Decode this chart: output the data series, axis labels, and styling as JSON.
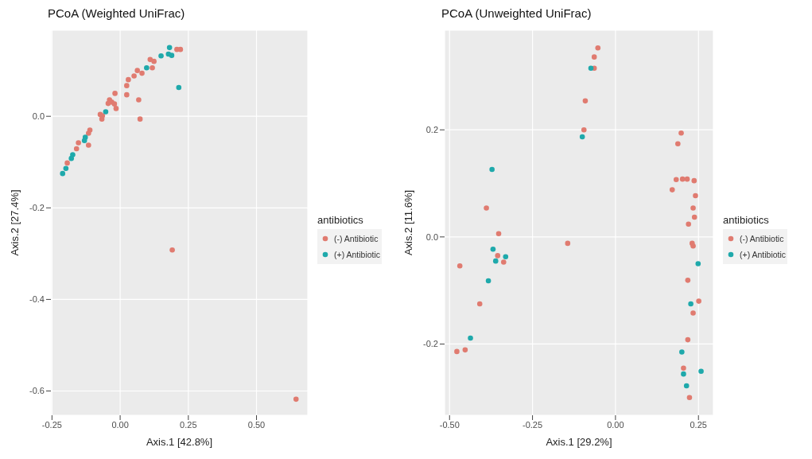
{
  "chart_data": [
    {
      "type": "scatter",
      "title": "PCoA (Weighted UniFrac)",
      "xlabel": "Axis.1   [42.8%]",
      "ylabel": "Axis.2   [27.4%]",
      "legend_title": "antibiotics",
      "legend": "right",
      "grid": true,
      "marker": "circle",
      "xlim": [
        -0.254,
        0.688
      ],
      "ylim": [
        -0.653,
        0.188
      ],
      "xticks": [
        {
          "value": -0.25,
          "label": "-0.25"
        },
        {
          "value": 0,
          "label": "0.00"
        },
        {
          "value": 0.25,
          "label": "0.25"
        },
        {
          "value": 0.5,
          "label": "0.50"
        }
      ],
      "yticks": [
        {
          "value": -0.6,
          "label": "-0.6"
        },
        {
          "value": -0.4,
          "label": "-0.4"
        },
        {
          "value": -0.2,
          "label": "-0.2"
        },
        {
          "value": 0,
          "label": "0.0"
        }
      ],
      "series": [
        {
          "name": "(-) Antibiotic",
          "color": "#e07b70",
          "x": [
            0.208,
            0.221,
            0.11,
            0.124,
            0.118,
            0.063,
            0.08,
            0.051,
            0.03,
            0.024,
            0.024,
            -0.019,
            0.068,
            -0.039,
            -0.031,
            -0.044,
            -0.021,
            -0.015,
            0.073,
            -0.073,
            -0.065,
            -0.067,
            -0.111,
            -0.116,
            -0.116,
            -0.153,
            -0.16,
            -0.194,
            0.191,
            0.645
          ],
          "values": [
            0.146,
            0.146,
            0.124,
            0.12,
            0.106,
            0.1,
            0.094,
            0.088,
            0.08,
            0.067,
            0.047,
            0.05,
            0.036,
            0.036,
            0.031,
            0.028,
            0.027,
            0.017,
            -0.006,
            0.004,
            0.001,
            -0.006,
            -0.03,
            -0.037,
            -0.063,
            -0.058,
            -0.071,
            -0.102,
            -0.292,
            -0.618
          ]
        },
        {
          "name": "(+) Antibiotic",
          "color": "#1fa9ab",
          "x": [
            0.181,
            0.15,
            0.177,
            0.189,
            0.215,
            0.097,
            -0.053,
            -0.128,
            -0.131,
            -0.174,
            -0.179,
            -0.199,
            -0.211
          ],
          "values": [
            0.15,
            0.132,
            0.136,
            0.133,
            0.063,
            0.106,
            0.01,
            -0.046,
            -0.053,
            -0.084,
            -0.092,
            -0.114,
            -0.125
          ]
        }
      ]
    },
    {
      "type": "scatter",
      "title": "PCoA (Unweighted UniFrac)",
      "xlabel": "Axis.1   [29.2%]",
      "ylabel": "Axis.2   [11.6%]",
      "legend_title": "antibiotics",
      "legend": "right",
      "grid": true,
      "marker": "circle",
      "xlim": [
        -0.515,
        0.295
      ],
      "ylim": [
        -0.333,
        0.386
      ],
      "xticks": [
        {
          "value": -0.5,
          "label": "-0.50"
        },
        {
          "value": -0.25,
          "label": "-0.25"
        },
        {
          "value": 0,
          "label": "0.00"
        },
        {
          "value": 0.25,
          "label": "0.25"
        }
      ],
      "yticks": [
        {
          "value": -0.2,
          "label": "-0.2"
        },
        {
          "value": 0,
          "label": "0.0"
        },
        {
          "value": 0.2,
          "label": "0.2"
        }
      ],
      "series": [
        {
          "name": "(-) Antibiotic",
          "color": "#e07b70",
          "x": [
            -0.389,
            -0.352,
            -0.355,
            -0.337,
            -0.469,
            -0.409,
            -0.453,
            -0.478,
            -0.053,
            -0.064,
            -0.064,
            -0.091,
            -0.095,
            0.198,
            0.188,
            0.183,
            0.202,
            0.216,
            0.237,
            0.171,
            0.241,
            null,
            0.234,
            0.238,
            0.22,
            -0.144,
            0.231,
            0.234,
            null,
            0.218,
            0.251,
            0.234,
            0.218,
            0.205,
            0.223
          ],
          "values": [
            0.054,
            0.006,
            -0.035,
            -0.047,
            -0.054,
            -0.125,
            -0.211,
            -0.214,
            0.353,
            0.336,
            0.315,
            0.254,
            0.2,
            0.194,
            0.174,
            0.107,
            0.108,
            0.108,
            0.105,
            0.088,
            0.077,
            null,
            0.054,
            0.037,
            0.024,
            -0.012,
            -0.012,
            -0.017,
            null,
            -0.081,
            -0.12,
            -0.142,
            -0.192,
            -0.245,
            -0.3
          ]
        },
        {
          "name": "(+) Antibiotic",
          "color": "#1fa9ab",
          "x": [
            -0.372,
            -0.369,
            -0.361,
            -0.331,
            -0.383,
            -0.437,
            -0.074,
            -0.1,
            0.249,
            0.227,
            0.2,
            0.205,
            0.258,
            0.214
          ],
          "values": [
            0.126,
            -0.023,
            -0.045,
            -0.037,
            -0.082,
            -0.189,
            0.315,
            0.187,
            -0.05,
            -0.125,
            -0.215,
            -0.256,
            -0.251,
            -0.278
          ]
        }
      ]
    }
  ]
}
